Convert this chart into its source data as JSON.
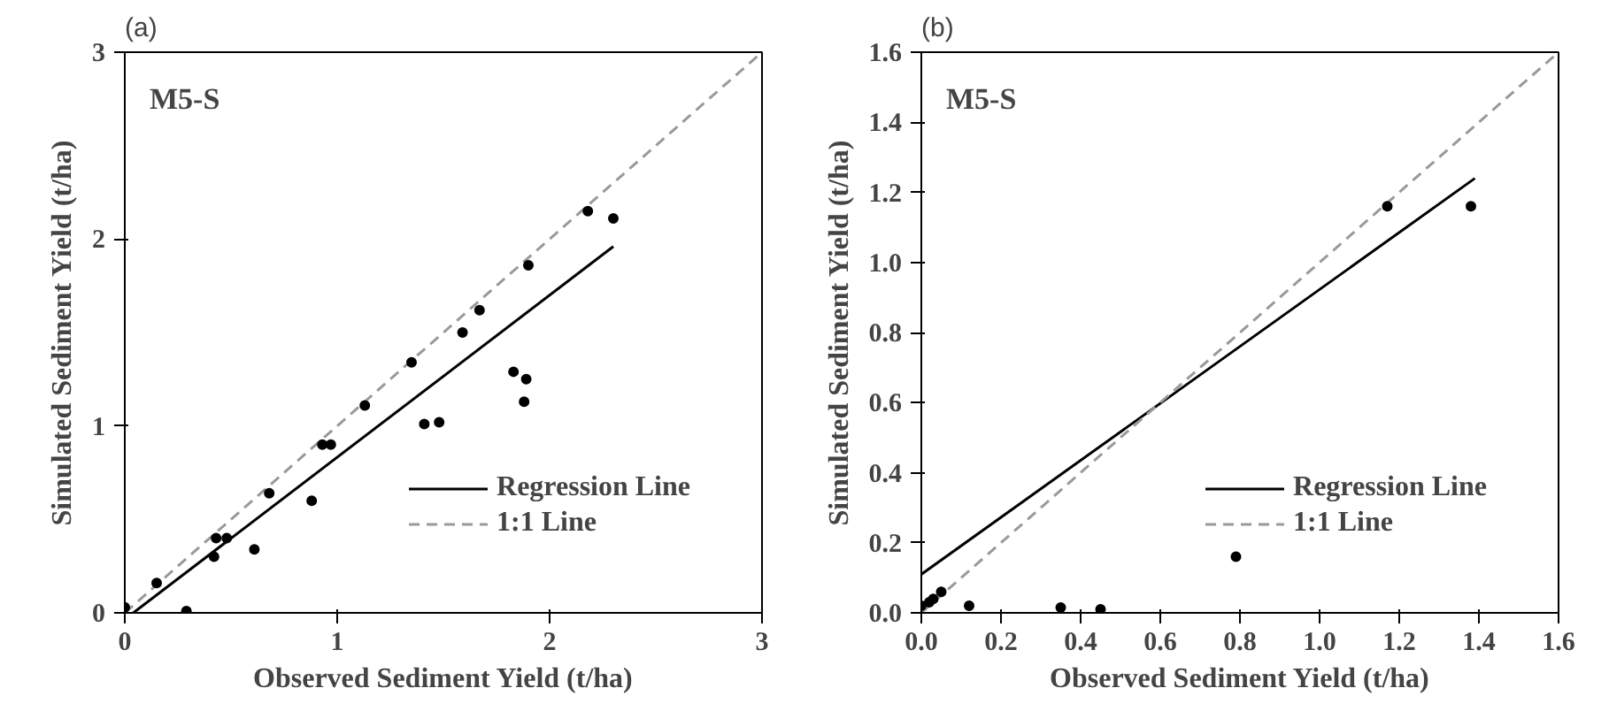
{
  "chart_data": [
    {
      "type": "scatter",
      "title": "(a)",
      "xlabel": "Observed Sediment Yield (t/ha)",
      "ylabel": "Simulated Sediment Yield (t/ha)",
      "annotations": [
        "M5-S"
      ],
      "xlim": [
        0,
        3
      ],
      "ylim": [
        0,
        3
      ],
      "xticks": [
        0,
        1,
        2,
        3
      ],
      "yticks": [
        0,
        1,
        2,
        3
      ],
      "legend": "bottom right",
      "series": [
        {
          "color": "#000000",
          "marker": "circle",
          "x": [
            0.0,
            0.15,
            0.29,
            0.42,
            0.43,
            0.48,
            0.61,
            0.68,
            0.88,
            0.93,
            0.97,
            1.13,
            1.35,
            1.41,
            1.48,
            1.59,
            1.67,
            1.83,
            1.89,
            1.88,
            1.9,
            2.18,
            2.3
          ],
          "values": [
            0.03,
            0.16,
            0.01,
            0.3,
            0.4,
            0.4,
            0.34,
            0.64,
            0.6,
            0.9,
            0.9,
            1.11,
            1.34,
            1.01,
            1.02,
            1.5,
            1.62,
            1.29,
            1.25,
            1.13,
            1.86,
            2.15,
            2.11
          ]
        },
        {
          "type": "line",
          "name": "Regression Line",
          "color": "#000000",
          "line_style": "solid",
          "x": [
            0.04,
            2.3
          ],
          "values": [
            0.0,
            1.96
          ]
        },
        {
          "type": "line",
          "name": "1:1 Line",
          "color": "#999999",
          "line_style": "dashed",
          "x": [
            0,
            3
          ],
          "values": [
            0,
            3
          ]
        }
      ]
    },
    {
      "type": "scatter",
      "title": "(b)",
      "xlabel": "Observed Sediment Yield (t/ha)",
      "ylabel": "Simulated Sediment Yield (t/ha)",
      "annotations": [
        "M5-S"
      ],
      "xlim": [
        0,
        1.6
      ],
      "ylim": [
        0,
        1.6
      ],
      "xticks": [
        {
          "value": 0,
          "label": "0.0"
        },
        0.2,
        0.4,
        0.6,
        0.8,
        {
          "value": 1,
          "label": "1.0"
        },
        1.2,
        1.4,
        1.6
      ],
      "yticks": [
        {
          "value": 0,
          "label": "0.0"
        },
        0.2,
        0.4,
        0.6,
        0.8,
        {
          "value": 1,
          "label": "1.0"
        },
        1.2,
        1.4,
        1.6
      ],
      "legend": "bottom right",
      "series": [
        {
          "color": "#000000",
          "marker": "circle",
          "x": [
            0.0,
            0.02,
            0.03,
            0.05,
            0.12,
            0.35,
            0.45,
            0.79,
            1.17,
            1.38
          ],
          "values": [
            0.02,
            0.03,
            0.04,
            0.06,
            0.02,
            0.015,
            0.01,
            0.16,
            1.16,
            1.16
          ]
        },
        {
          "type": "line",
          "name": "Regression Line",
          "color": "#000000",
          "line_style": "solid",
          "x": [
            0.0,
            1.39
          ],
          "values": [
            0.11,
            1.24
          ]
        },
        {
          "type": "line",
          "name": "1:1 Line",
          "color": "#999999",
          "line_style": "dashed",
          "x": [
            0,
            1.6
          ],
          "values": [
            0,
            1.6
          ]
        }
      ]
    }
  ]
}
